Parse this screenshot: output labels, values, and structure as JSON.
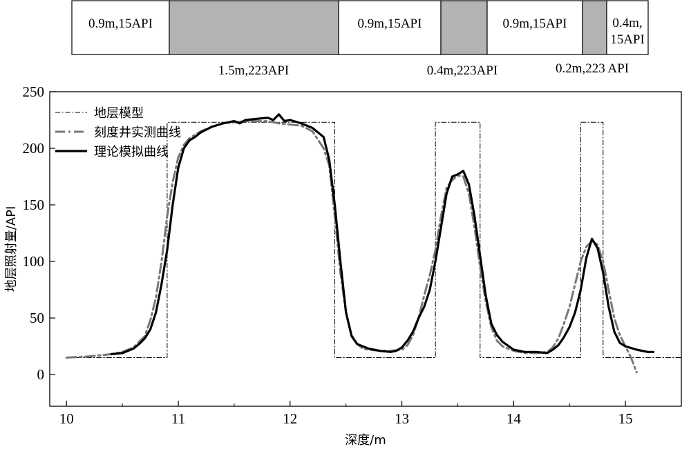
{
  "chart_data": {
    "type": "line",
    "title": "",
    "xlabel": "深度/m",
    "ylabel": "地层照射量/API",
    "xlim": [
      9.85,
      15.5
    ],
    "ylim": [
      -28,
      250
    ],
    "xticks": [
      10,
      11,
      12,
      13,
      14,
      15
    ],
    "yticks": [
      0,
      50,
      100,
      150,
      200,
      250
    ],
    "legend": [
      "地层模型",
      "刻度井实测曲线",
      "理论模拟曲线"
    ],
    "legend_position": "top-left",
    "layers": [
      {
        "depth_from": 10.0,
        "depth_to": 10.9,
        "label": "0.9m,15API",
        "value": 15,
        "shaded": false
      },
      {
        "depth_from": 10.9,
        "depth_to": 12.4,
        "label": "1.5m,223API",
        "value": 223,
        "shaded": true
      },
      {
        "depth_from": 12.4,
        "depth_to": 13.3,
        "label": "0.9m,15API",
        "value": 15,
        "shaded": false
      },
      {
        "depth_from": 13.3,
        "depth_to": 13.7,
        "label": "0.4m,223API",
        "value": 223,
        "shaded": true
      },
      {
        "depth_from": 13.7,
        "depth_to": 14.6,
        "label": "0.9m,15API",
        "value": 15,
        "shaded": false
      },
      {
        "depth_from": 14.6,
        "depth_to": 14.8,
        "label": "0.2m,223 API",
        "value": 223,
        "shaded": true
      },
      {
        "depth_from": 14.8,
        "depth_to": 15.2,
        "label": "0.4m,15API",
        "value": 15,
        "shaded": false
      }
    ],
    "series": [
      {
        "name": "地层模型",
        "style": "dashdot-thin",
        "x": [
          10.0,
          10.9,
          10.9,
          12.4,
          12.4,
          13.3,
          13.3,
          13.7,
          13.7,
          14.6,
          14.6,
          14.8,
          14.8,
          15.5
        ],
        "y": [
          15,
          15,
          223,
          223,
          15,
          15,
          223,
          223,
          15,
          15,
          223,
          223,
          15,
          15
        ]
      },
      {
        "name": "刻度井实测曲线",
        "style": "dashdot-gray",
        "x": [
          10.0,
          10.2,
          10.4,
          10.5,
          10.6,
          10.7,
          10.75,
          10.8,
          10.85,
          10.9,
          10.95,
          11.0,
          11.05,
          11.1,
          11.2,
          11.3,
          11.4,
          11.5,
          11.6,
          11.7,
          11.8,
          11.9,
          12.0,
          12.1,
          12.2,
          12.3,
          12.35,
          12.4,
          12.45,
          12.5,
          12.55,
          12.6,
          12.65,
          12.7,
          12.8,
          12.9,
          13.0,
          13.05,
          13.1,
          13.15,
          13.2,
          13.25,
          13.3,
          13.35,
          13.4,
          13.45,
          13.5,
          13.55,
          13.6,
          13.65,
          13.7,
          13.75,
          13.8,
          13.85,
          13.9,
          14.0,
          14.1,
          14.2,
          14.3,
          14.35,
          14.4,
          14.45,
          14.5,
          14.55,
          14.6,
          14.65,
          14.7,
          14.75,
          14.8,
          14.85,
          14.9,
          14.95,
          15.0,
          15.05,
          15.1
        ],
        "y": [
          15,
          16,
          18,
          20,
          24,
          34,
          48,
          68,
          100,
          140,
          170,
          192,
          203,
          209,
          215,
          219,
          222,
          223,
          224,
          224,
          224,
          222,
          221,
          220,
          215,
          200,
          185,
          140,
          90,
          55,
          35,
          27,
          23,
          22,
          21,
          21,
          22,
          26,
          35,
          50,
          70,
          88,
          110,
          140,
          165,
          172,
          176,
          175,
          160,
          130,
          95,
          65,
          42,
          30,
          25,
          21,
          19,
          19,
          20,
          24,
          32,
          45,
          60,
          80,
          100,
          113,
          118,
          115,
          100,
          75,
          50,
          35,
          25,
          15,
          2
        ]
      },
      {
        "name": "理论模拟曲线",
        "style": "solid-bold",
        "x": [
          10.4,
          10.5,
          10.6,
          10.65,
          10.7,
          10.75,
          10.8,
          10.85,
          10.9,
          10.95,
          11.0,
          11.05,
          11.1,
          11.15,
          11.2,
          11.3,
          11.4,
          11.5,
          11.55,
          11.6,
          11.7,
          11.8,
          11.85,
          11.9,
          11.95,
          12.0,
          12.1,
          12.2,
          12.3,
          12.35,
          12.4,
          12.45,
          12.5,
          12.55,
          12.6,
          12.7,
          12.8,
          12.9,
          12.95,
          13.0,
          13.05,
          13.1,
          13.15,
          13.2,
          13.25,
          13.3,
          13.35,
          13.4,
          13.45,
          13.5,
          13.55,
          13.6,
          13.65,
          13.7,
          13.75,
          13.8,
          13.85,
          13.9,
          14.0,
          14.1,
          14.2,
          14.3,
          14.35,
          14.4,
          14.45,
          14.5,
          14.55,
          14.6,
          14.65,
          14.7,
          14.75,
          14.8,
          14.85,
          14.9,
          14.95,
          15.0,
          15.1,
          15.2,
          15.25
        ],
        "y": [
          18,
          19,
          23,
          27,
          32,
          40,
          55,
          80,
          110,
          150,
          183,
          200,
          207,
          210,
          214,
          219,
          222,
          224,
          222,
          225,
          226,
          227,
          225,
          230,
          224,
          225,
          222,
          218,
          210,
          190,
          150,
          100,
          55,
          34,
          27,
          23,
          21,
          20,
          21,
          24,
          30,
          38,
          50,
          60,
          75,
          100,
          130,
          160,
          175,
          177,
          180,
          168,
          140,
          105,
          70,
          45,
          35,
          29,
          22,
          20,
          20,
          19,
          22,
          26,
          33,
          42,
          55,
          75,
          103,
          120,
          112,
          90,
          60,
          38,
          28,
          25,
          22,
          20,
          20
        ]
      }
    ]
  }
}
